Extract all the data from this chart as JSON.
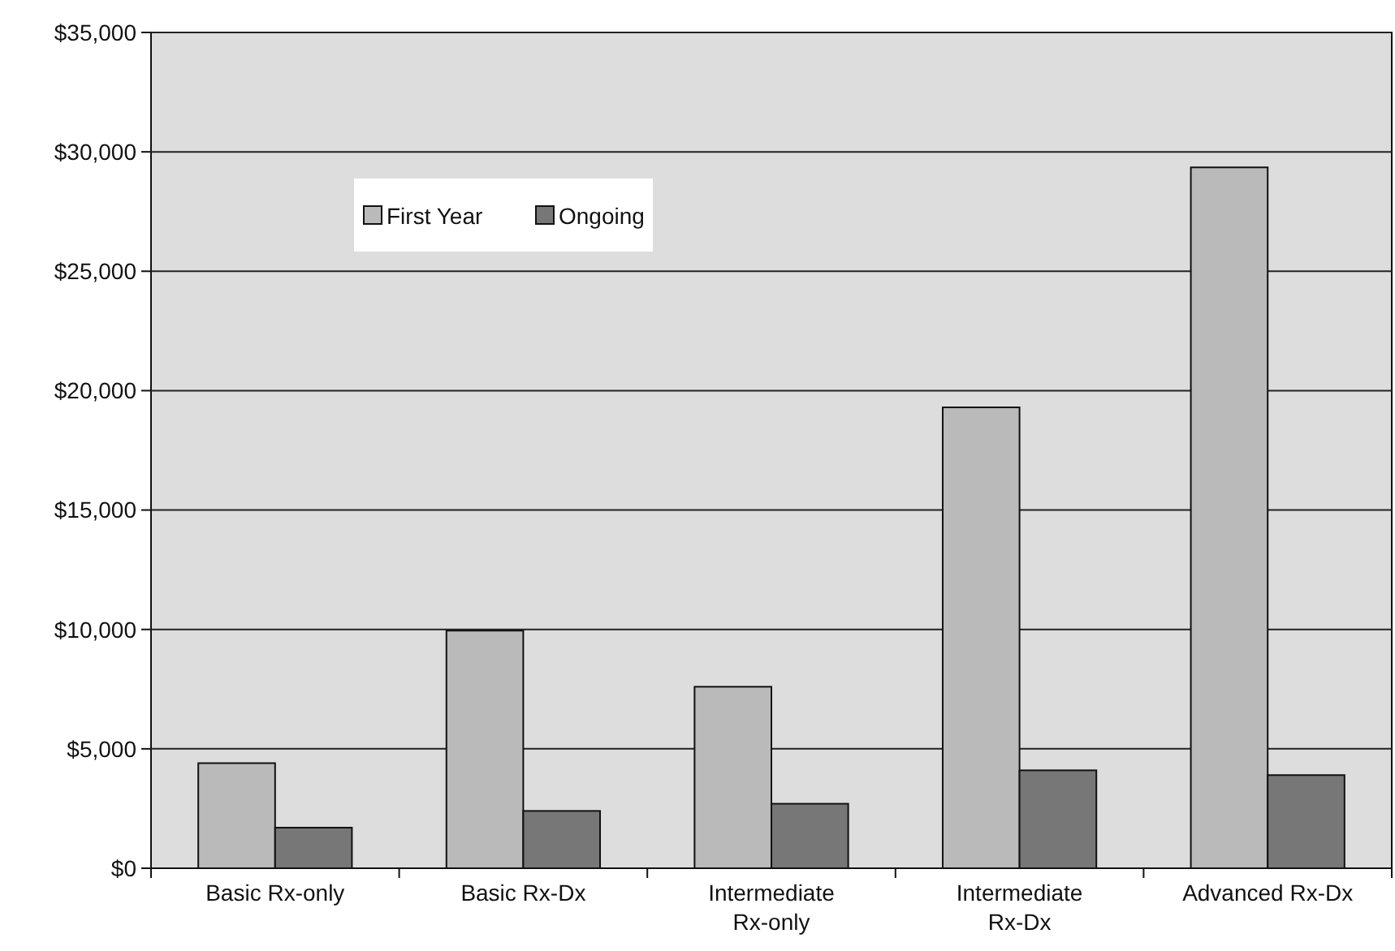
{
  "chart_data": {
    "type": "bar",
    "categories": [
      "Basic Rx-only",
      "Basic Rx-Dx",
      "Intermediate Rx-only",
      "Intermediate Rx-Dx",
      "Advanced Rx-Dx"
    ],
    "series": [
      {
        "name": "First Year",
        "color": "#bababa",
        "values": [
          4400,
          9950,
          7600,
          19300,
          29350
        ]
      },
      {
        "name": "Ongoing",
        "color": "#777777",
        "values": [
          1700,
          2400,
          2700,
          4100,
          3900
        ]
      }
    ],
    "ylim": [
      0,
      35000
    ],
    "yticks": [
      {
        "value": 0,
        "label": "$0"
      },
      {
        "value": 5000,
        "label": "$5,000"
      },
      {
        "value": 10000,
        "label": "$10,000"
      },
      {
        "value": 15000,
        "label": "$15,000"
      },
      {
        "value": 20000,
        "label": "$20,000"
      },
      {
        "value": 25000,
        "label": "$25,000"
      },
      {
        "value": 30000,
        "label": "$30,000"
      },
      {
        "value": 35000,
        "label": "$35,000"
      }
    ],
    "grid": "y",
    "legend": "top left"
  }
}
